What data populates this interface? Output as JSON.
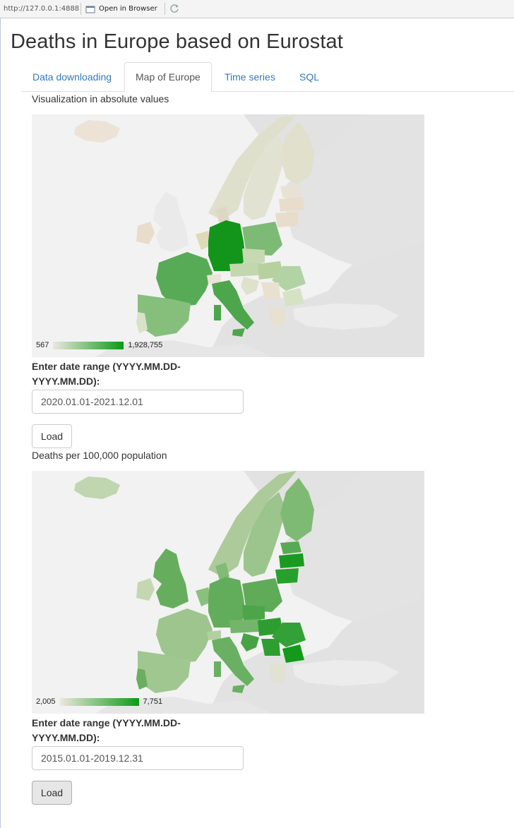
{
  "browser": {
    "url": "http://127.0.0.1:4888",
    "open_in_browser": "Open in Browser"
  },
  "app": {
    "title": "Deaths in Europe based on Eurostat"
  },
  "tabs": [
    {
      "label": "Data downloading",
      "active": false
    },
    {
      "label": "Map of Europe",
      "active": true
    },
    {
      "label": "Time series",
      "active": false
    },
    {
      "label": "SQL",
      "active": false
    }
  ],
  "map1": {
    "label": "Visualization in absolute values",
    "legend_min": "567",
    "legend_max": "1,928,755",
    "color_low": "#ece7de",
    "color_high": "#0b9a17",
    "date_label": "Enter date range (YYYY.MM.DD-YYYY.MM.DD):",
    "date_value": "2020.01.01-2021.12.01",
    "load_label": "Load"
  },
  "map2": {
    "label": "Deaths per 100,000 population",
    "legend_min": "2,005",
    "legend_max": "7,751",
    "color_low": "#ece7de",
    "color_high": "#0b9a17",
    "date_label": "Enter date range (YYYY.MM.DD-YYYY.MM.DD):",
    "date_value": "2015.01.01-2019.12.31",
    "load_label": "Load"
  },
  "colors": {
    "link": "#337ab7",
    "map_background": "#f2f2f2",
    "land_nodata": "#ffffff"
  }
}
